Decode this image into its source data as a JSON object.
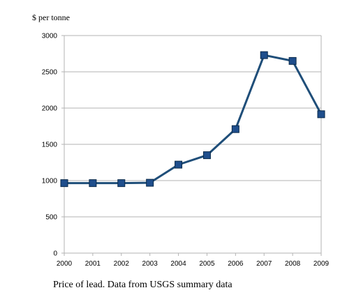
{
  "chart_data": {
    "type": "line",
    "ylabel": "$ per tonne",
    "caption": "Price of lead.  Data from USGS summary data",
    "x": [
      "2000",
      "2001",
      "2002",
      "2003",
      "2004",
      "2005",
      "2006",
      "2007",
      "2008",
      "2009"
    ],
    "series": [
      {
        "values": [
          965,
          965,
          965,
          970,
          1220,
          1350,
          1710,
          2730,
          2650,
          1915
        ]
      }
    ],
    "ylim": [
      0,
      3000
    ],
    "yticks": [
      0,
      500,
      1000,
      1500,
      2000,
      2500,
      3000
    ],
    "grid": true,
    "line_color": "#1f4e79",
    "marker_color": "#1f4e8c",
    "legend": "none"
  }
}
